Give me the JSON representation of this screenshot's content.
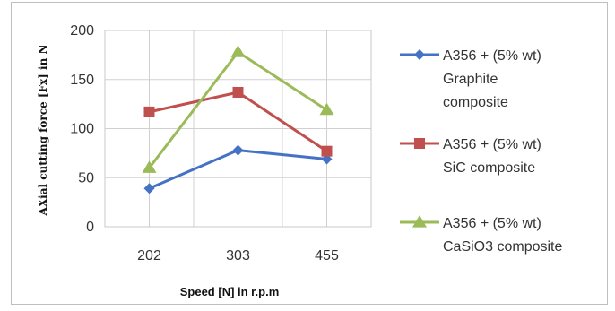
{
  "chart_data": {
    "type": "line",
    "xlabel": "Speed [N] in r.p.m",
    "ylabel": "AXial cutting force [Fx] in N",
    "categories": [
      "202",
      "303",
      "455"
    ],
    "ylim": [
      0,
      200
    ],
    "yticks": [
      0,
      50,
      100,
      150,
      200
    ],
    "grid": "on",
    "legend_position": "right",
    "series": [
      {
        "name_lines": [
          "A356 + (5% wt)",
          "Graphite",
          "composite"
        ],
        "values": [
          39,
          78,
          69
        ],
        "color": "#4472c4",
        "marker": "diamond"
      },
      {
        "name_lines": [
          "A356 + (5% wt)",
          "SiC composite"
        ],
        "values": [
          117,
          137,
          77
        ],
        "color": "#c0504d",
        "marker": "square"
      },
      {
        "name_lines": [
          "A356 + (5% wt)",
          "CaSiO3 composite"
        ],
        "values": [
          60,
          178,
          119
        ],
        "color": "#9bbb59",
        "marker": "triangle"
      }
    ]
  }
}
